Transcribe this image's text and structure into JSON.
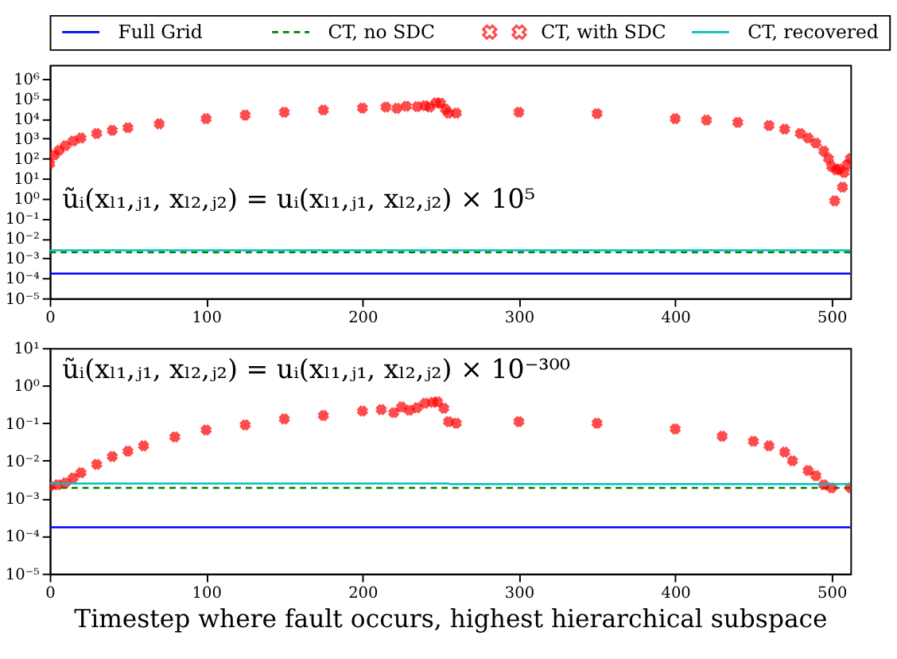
{
  "chart_data": [
    {
      "type": "line",
      "legend": "top",
      "log": "y",
      "xlim": [
        0,
        512
      ],
      "ylim": [
        1e-05,
        5000000.0
      ],
      "xticks": [
        0,
        100,
        200,
        300,
        400,
        500
      ],
      "yticks": [
        {
          "value": 1e-05,
          "label": "10⁻⁵"
        },
        {
          "value": 0.0001,
          "label": "10⁻⁴"
        },
        {
          "value": 0.001,
          "label": "10⁻³"
        },
        {
          "value": 0.01,
          "label": "10⁻²"
        },
        {
          "value": 0.1,
          "label": "10⁻¹"
        },
        {
          "value": 1,
          "label": "10⁰"
        },
        {
          "value": 10,
          "label": "10¹"
        },
        {
          "value": 100,
          "label": "10²"
        },
        {
          "value": 1000,
          "label": "10³"
        },
        {
          "value": 10000,
          "label": "10⁴"
        },
        {
          "value": 100000,
          "label": "10⁵"
        },
        {
          "value": 1000000,
          "label": "10⁶"
        }
      ],
      "annotations": [
        "ũᵢ(xₗ₁,ⱼ₁, xₗ₂,ⱼ₂) = uᵢ(xₗ₁,ⱼ₁, xₗ₂,ⱼ₂) × 10⁵"
      ],
      "series": [
        {
          "name": "Full Grid",
          "color": "#0000ff",
          "line_style": "solid",
          "x": [
            0,
            512
          ],
          "values": [
            0.00017,
            0.00017
          ]
        },
        {
          "name": "CT, no SDC",
          "color": "#008000",
          "line_style": "dashed",
          "x": [
            0,
            512
          ],
          "values": [
            0.002,
            0.002
          ]
        },
        {
          "name": "CT, with SDC",
          "color": "#ff0000",
          "type": "scatter",
          "marker": "cross",
          "x": [
            0,
            3,
            6,
            10,
            15,
            20,
            30,
            40,
            50,
            70,
            100,
            125,
            150,
            175,
            200,
            215,
            222,
            228,
            235,
            240,
            243,
            247,
            250,
            253,
            255,
            260,
            300,
            350,
            400,
            420,
            440,
            460,
            470,
            480,
            485,
            490,
            495,
            498,
            500,
            502,
            503,
            505,
            507,
            508,
            510,
            512
          ],
          "values": [
            55,
            150,
            260,
            440,
            750,
            1070,
            1800,
            2600,
            3500,
            5500,
            10000,
            15000,
            21000,
            27000,
            34000,
            38000,
            33000,
            42000,
            40000,
            45000,
            38000,
            62000,
            60000,
            30000,
            19000,
            19000,
            21000,
            18000,
            10000,
            8500,
            6500,
            4500,
            3000,
            1800,
            1070,
            600,
            240,
            100,
            40,
            0.76,
            27,
            30,
            3.7,
            20,
            50,
            100
          ]
        },
        {
          "name": "CT, recovered",
          "color": "#00bfbf",
          "line_style": "solid",
          "x": [
            0,
            512
          ],
          "values": [
            0.0025,
            0.0025
          ]
        }
      ]
    },
    {
      "type": "line",
      "log": "y",
      "xlim": [
        0,
        512
      ],
      "ylim": [
        1e-05,
        10
      ],
      "xticks": [
        0,
        100,
        200,
        300,
        400,
        500
      ],
      "xlabel": "Timestep where fault occurs, highest hierarchical subspace",
      "yticks": [
        {
          "value": 1e-05,
          "label": "10⁻⁵"
        },
        {
          "value": 0.0001,
          "label": "10⁻⁴"
        },
        {
          "value": 0.001,
          "label": "10⁻³"
        },
        {
          "value": 0.01,
          "label": "10⁻²"
        },
        {
          "value": 0.1,
          "label": "10⁻¹"
        },
        {
          "value": 1,
          "label": "10⁰"
        },
        {
          "value": 10,
          "label": "10¹"
        }
      ],
      "annotations": [
        "ũᵢ(xₗ₁,ⱼ₁, xₗ₂,ⱼ₂) = uᵢ(xₗ₁,ⱼ₁, xₗ₂,ⱼ₂) × 10⁻³⁰⁰"
      ],
      "series": [
        {
          "color": "#0000ff",
          "line_style": "solid",
          "x": [
            0,
            512
          ],
          "values": [
            0.00017,
            0.00017
          ]
        },
        {
          "color": "#008000",
          "line_style": "dashed",
          "x": [
            0,
            512
          ],
          "values": [
            0.0019,
            0.0019
          ]
        },
        {
          "color": "#ff0000",
          "type": "scatter",
          "marker": "cross",
          "x": [
            0,
            5,
            10,
            15,
            20,
            30,
            40,
            50,
            60,
            80,
            100,
            125,
            150,
            175,
            200,
            212,
            220,
            225,
            230,
            235,
            240,
            245,
            248,
            252,
            255,
            260,
            300,
            350,
            400,
            430,
            450,
            460,
            470,
            475,
            485,
            490,
            495,
            500,
            512
          ],
          "values": [
            0.0021,
            0.0023,
            0.0026,
            0.0035,
            0.0048,
            0.008,
            0.013,
            0.018,
            0.025,
            0.043,
            0.066,
            0.09,
            0.13,
            0.16,
            0.21,
            0.23,
            0.19,
            0.27,
            0.22,
            0.26,
            0.34,
            0.36,
            0.37,
            0.25,
            0.11,
            0.1,
            0.11,
            0.1,
            0.07,
            0.045,
            0.033,
            0.025,
            0.017,
            0.01,
            0.0055,
            0.004,
            0.0023,
            0.0019,
            0.0019
          ]
        },
        {
          "color": "#00bfbf",
          "line_style": "solid",
          "x": [
            0,
            255,
            256,
            512
          ],
          "values": [
            0.0025,
            0.0025,
            0.0024,
            0.0024
          ]
        }
      ]
    }
  ]
}
